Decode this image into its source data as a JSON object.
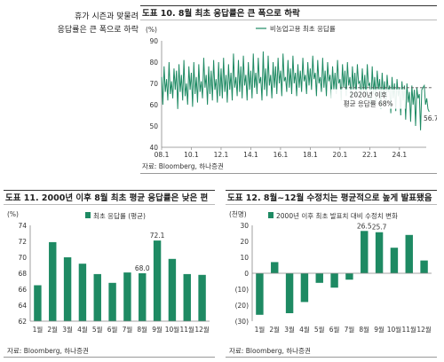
{
  "side_note": {
    "line1": "휴가 시즌과 맞물려",
    "line2": "응답률은 큰 폭으로 하락"
  },
  "chart_data": [
    {
      "id": "fig10",
      "type": "line",
      "title": "도표 10. 8월 최초 응답률은 큰 폭으로 하락",
      "unit": "(%)",
      "legend": "비농업고용 최초 응답률",
      "legend_position": "top",
      "xtick_labels": [
        "08.1",
        "10.1",
        "12.1",
        "14.1",
        "16.1",
        "18.1",
        "20.1",
        "22.1",
        "24.1"
      ],
      "xlim": [
        2008.0,
        2025.8
      ],
      "ylim": [
        40,
        90
      ],
      "yticks": [
        40,
        50,
        60,
        70,
        80,
        90
      ],
      "x_start": 2008.0,
      "x_step_months": 1,
      "series": [
        {
          "name": "비농업고용 최초 응답률",
          "values": [
            73,
            60,
            78,
            66,
            72,
            62,
            80,
            65,
            71,
            63,
            77,
            67,
            76,
            58,
            79,
            66,
            74,
            62,
            81,
            64,
            70,
            60,
            78,
            67,
            75,
            59,
            80,
            65,
            73,
            61,
            79,
            66,
            71,
            63,
            82,
            68,
            74,
            60,
            78,
            65,
            76,
            62,
            81,
            67,
            72,
            61,
            80,
            64,
            77,
            63,
            82,
            66,
            74,
            61,
            79,
            67,
            75,
            62,
            84,
            68,
            73,
            64,
            81,
            66,
            78,
            63,
            83,
            69,
            74,
            62,
            80,
            67,
            76,
            63,
            84,
            68,
            75,
            65,
            82,
            70,
            73,
            62,
            85,
            67,
            77,
            64,
            83,
            69,
            74,
            63,
            80,
            68,
            78,
            65,
            82,
            70,
            76,
            64,
            84,
            71,
            73,
            66,
            81,
            68,
            77,
            65,
            83,
            70,
            75,
            64,
            79,
            68,
            76,
            66,
            82,
            71,
            74,
            65,
            80,
            69,
            77,
            67,
            83,
            72,
            75,
            64,
            81,
            70,
            73,
            66,
            82,
            68,
            76,
            64,
            80,
            71,
            74,
            63,
            78,
            67,
            75,
            65,
            81,
            70,
            72,
            62,
            79,
            68,
            76,
            64,
            80,
            69,
            73,
            61,
            78,
            67,
            75,
            64,
            79,
            70,
            71,
            63,
            77,
            66,
            74,
            62,
            79,
            69,
            70,
            60,
            78,
            65,
            73,
            61,
            76,
            67,
            72,
            58,
            75,
            64,
            71,
            59,
            74,
            66,
            69,
            56,
            73,
            63,
            70,
            57,
            72,
            64,
            68,
            55,
            71,
            62,
            69,
            53,
            70,
            61,
            66,
            52,
            69,
            60,
            67,
            50,
            68,
            63,
            65,
            48,
            67,
            68,
            69,
            60,
            63,
            58,
            56.7
          ]
        }
      ],
      "annotations": [
        {
          "text_line1": "2020년 이후",
          "text_line2": "평균 응답률 68%",
          "avg_value": 68,
          "avg_from_year": 2020
        },
        {
          "text": "56.7",
          "value": 56.7
        }
      ],
      "grid": false,
      "source": "자료: Bloomberg, 하나증권"
    },
    {
      "id": "fig11",
      "type": "bar",
      "title": "도표 11. 2000년 이후 8월 최초 평균 응답률은 낮은 편",
      "unit": "(%)",
      "legend": "최초 응답률 (평균)",
      "legend_position": "top",
      "categories": [
        "1월",
        "2월",
        "3월",
        "4월",
        "5월",
        "6월",
        "7월",
        "8월",
        "9월",
        "10월",
        "11월",
        "12월"
      ],
      "values": [
        66.5,
        71.9,
        70.0,
        69.2,
        67.9,
        66.8,
        68.1,
        68.0,
        72.1,
        69.8,
        67.9,
        67.8
      ],
      "data_labels": {
        "7": "68.0",
        "8": "72.1"
      },
      "ylim": [
        62,
        74
      ],
      "yticks": [
        62,
        64,
        66,
        68,
        70,
        72,
        74
      ],
      "color": "#1e8a63",
      "source": "자료: Bloomberg, 하나증권"
    },
    {
      "id": "fig12",
      "type": "bar",
      "title": "도표 12. 8월~12월 수정치는 평균적으로 높게 발표됐음",
      "unit": "(천명)",
      "legend": "2000년 이후 최초 발표치 대비 수정치 변화",
      "legend_position": "top",
      "categories": [
        "1월",
        "2월",
        "3월",
        "4월",
        "5월",
        "6월",
        "7월",
        "8월",
        "9월",
        "10월",
        "11월",
        "12월"
      ],
      "values": [
        -26,
        7,
        -25,
        -18,
        -6,
        -9,
        -4,
        26.5,
        25.7,
        16,
        24,
        8
      ],
      "data_labels": {
        "7": "26.5",
        "8": "25.7"
      },
      "ylim": [
        -30,
        30
      ],
      "yticks": [
        -30,
        -20,
        -10,
        0,
        10,
        20,
        30
      ],
      "ytick_labels": [
        "(30)",
        "(20)",
        "(10)",
        "0",
        "10",
        "20",
        "30"
      ],
      "color": "#1e8a63",
      "source": "자료: Bloomberg, 하나증권"
    }
  ],
  "colors": {
    "bar": "#1e8a63",
    "line": "#1e8a63",
    "avg_line": "#555555"
  }
}
